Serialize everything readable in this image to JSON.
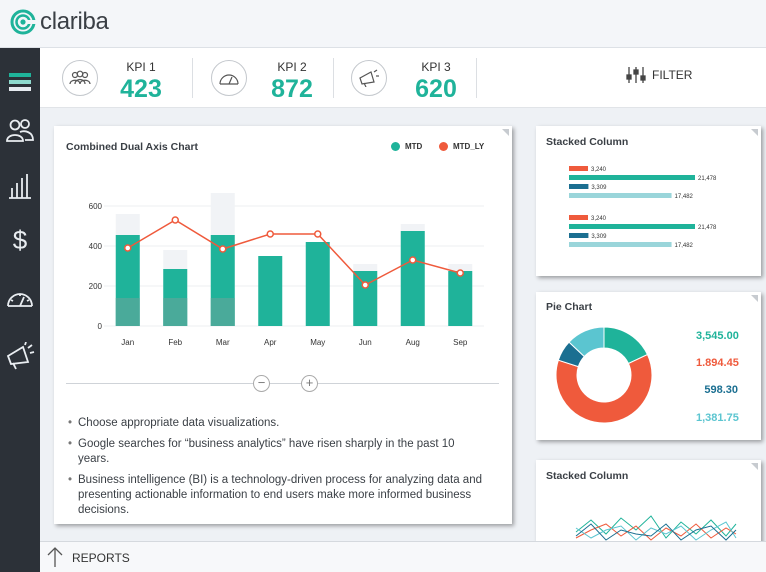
{
  "app": {
    "brand": "clariba",
    "brand_color": "#1fb39a"
  },
  "sidebar": {
    "items": [
      {
        "icon": "layers-icon",
        "active": true
      },
      {
        "icon": "users-icon"
      },
      {
        "icon": "bar-chart-icon"
      },
      {
        "icon": "dollar-icon"
      },
      {
        "icon": "gauge-icon"
      },
      {
        "icon": "megaphone-icon"
      }
    ]
  },
  "kpis": [
    {
      "label": "KPI 1",
      "value": "423",
      "icon": "users-icon"
    },
    {
      "label": "KPI 2",
      "value": "872",
      "icon": "gauge-icon"
    },
    {
      "label": "KPI 3",
      "value": "620",
      "icon": "megaphone-icon"
    }
  ],
  "filter": {
    "label": "FILTER"
  },
  "main_chart": {
    "title": "Combined Dual Axis Chart",
    "legend": [
      {
        "name": "MTD",
        "color": "#1fb39a"
      },
      {
        "name": "MTD_LY",
        "color": "#ef5a3c"
      }
    ],
    "chart_data": {
      "type": "bar",
      "categories": [
        "Jan",
        "Feb",
        "Mar",
        "Apr",
        "May",
        "Jun",
        "Aug",
        "Sep"
      ],
      "series": [
        {
          "name": "MTD",
          "type": "bar",
          "values": [
            455,
            285,
            455,
            350,
            420,
            275,
            475,
            275
          ]
        },
        {
          "name": "Background",
          "type": "bar",
          "values": [
            560,
            380,
            665,
            0,
            0,
            310,
            510,
            310
          ]
        },
        {
          "name": "Lower segment",
          "type": "bar",
          "values": [
            140,
            140,
            140,
            0,
            0,
            0,
            0,
            0
          ]
        },
        {
          "name": "MTD_LY",
          "type": "line",
          "values": [
            390,
            530,
            385,
            460,
            460,
            205,
            330,
            265
          ]
        }
      ],
      "yticks": [
        "0",
        "200",
        "400",
        "600"
      ],
      "ylim": [
        0,
        700
      ]
    },
    "zoom_out_label": "−",
    "zoom_in_label": "+",
    "notes": [
      "Choose appropriate data visualizations.",
      "Google searches for “business analytics” have risen sharply in the past 10 years.",
      "Business intelligence (BI) is a technology-driven process for analyzing data and presenting actionable information to end users make more informed business decisions."
    ]
  },
  "stacked_column_1": {
    "title": "Stacked Column",
    "chart_data": {
      "type": "bar",
      "groups": [
        {
          "bars": [
            {
              "label": "3,240",
              "value": 3240,
              "color": "#ef5a3c"
            },
            {
              "label": "21,478",
              "value": 21478,
              "color": "#1fb39a"
            },
            {
              "label": "3,309",
              "value": 3309,
              "color": "#1b6f91"
            },
            {
              "label": "17,482",
              "value": 17482,
              "color": "#8fd0d6"
            }
          ]
        },
        {
          "bars": [
            {
              "label": "3,240",
              "value": 3240,
              "color": "#ef5a3c"
            },
            {
              "label": "21,478",
              "value": 21478,
              "color": "#1fb39a"
            },
            {
              "label": "3,309",
              "value": 3309,
              "color": "#1b6f91"
            },
            {
              "label": "17,482",
              "value": 17482,
              "color": "#8fd0d6"
            }
          ]
        }
      ]
    }
  },
  "pie_chart": {
    "title": "Pie Chart",
    "chart_data": {
      "type": "pie",
      "labels": [
        "3,545.00",
        "1.894.45",
        "598.30",
        "1,381.75"
      ],
      "values": [
        18,
        62,
        7,
        13
      ],
      "colors": [
        "#1fb39a",
        "#ef5a3c",
        "#1b6f91",
        "#5bc5d0"
      ]
    },
    "values": [
      {
        "text": "3,545.00",
        "color": "#1fb39a"
      },
      {
        "text": "1.894.45",
        "color": "#ef5a3c"
      },
      {
        "text": "598.30",
        "color": "#1b6f91"
      },
      {
        "text": "1,381.75",
        "color": "#5bc5d0"
      }
    ]
  },
  "stacked_column_2": {
    "title": "Stacked Column"
  },
  "footer": {
    "reports_label": "REPORTS"
  }
}
